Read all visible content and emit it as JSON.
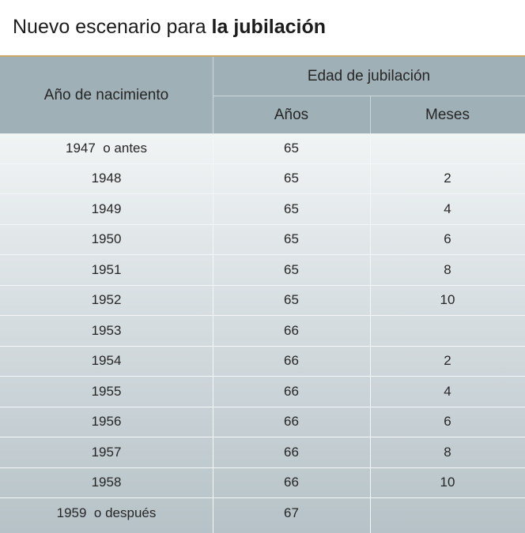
{
  "title": {
    "regular": "Nuevo escenario para ",
    "bold": "la jubilación"
  },
  "table": {
    "header": {
      "birth_year": "Año de nacimiento",
      "retirement_age": "Edad de jubilación",
      "years": "Años",
      "months": "Meses"
    },
    "rows": [
      {
        "year": "1947  o antes",
        "years": "65",
        "months": ""
      },
      {
        "year": "1948",
        "years": "65",
        "months": "2"
      },
      {
        "year": "1949",
        "years": "65",
        "months": "4"
      },
      {
        "year": "1950",
        "years": "65",
        "months": "6"
      },
      {
        "year": "1951",
        "years": "65",
        "months": "8"
      },
      {
        "year": "1952",
        "years": "65",
        "months": "10"
      },
      {
        "year": "1953",
        "years": "66",
        "months": ""
      },
      {
        "year": "1954",
        "years": "66",
        "months": "2"
      },
      {
        "year": "1955",
        "years": "66",
        "months": "4"
      },
      {
        "year": "1956",
        "years": "66",
        "months": "6"
      },
      {
        "year": "1957",
        "years": "66",
        "months": "8"
      },
      {
        "year": "1958",
        "years": "66",
        "months": "10"
      },
      {
        "year": "1959  o después",
        "years": "67",
        "months": ""
      }
    ]
  },
  "colors": {
    "header_bg": "#a0b0b7",
    "title_rule": "#c9a86a"
  }
}
